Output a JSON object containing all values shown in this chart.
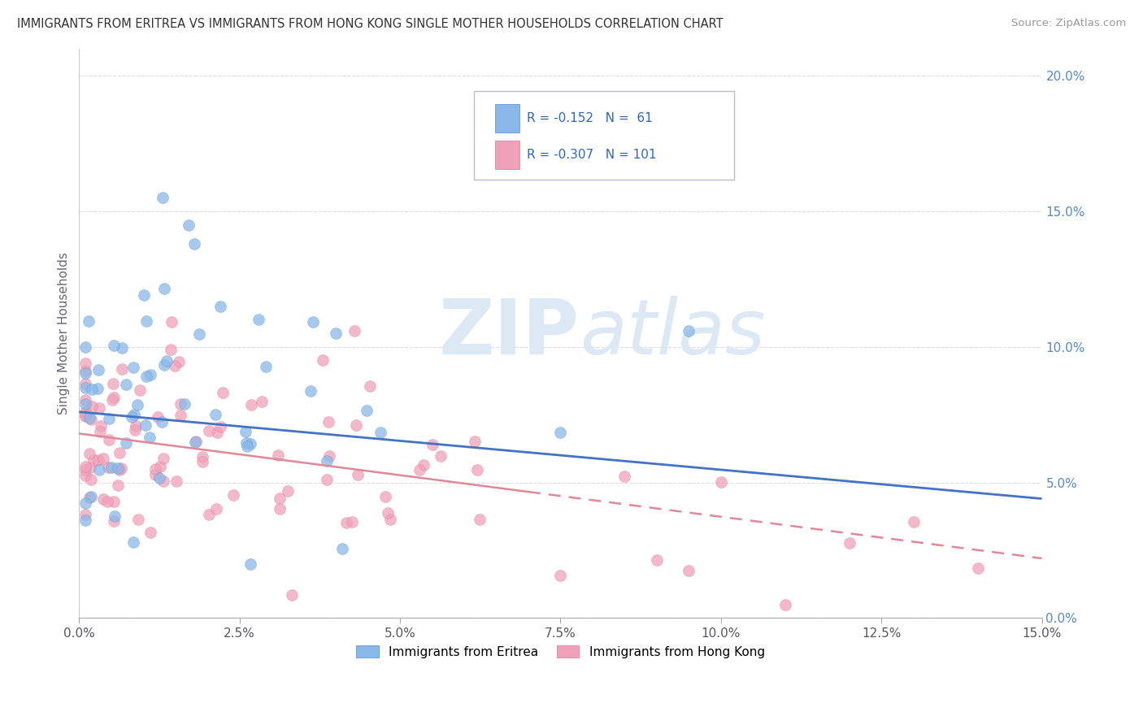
{
  "title": "IMMIGRANTS FROM ERITREA VS IMMIGRANTS FROM HONG KONG SINGLE MOTHER HOUSEHOLDS CORRELATION CHART",
  "source": "Source: ZipAtlas.com",
  "ylabel": "Single Mother Households",
  "legend_eritrea": {
    "R": "-0.152",
    "N": "61"
  },
  "legend_hongkong": {
    "R": "-0.307",
    "N": "101"
  },
  "watermark_zip": "ZIP",
  "watermark_atlas": "atlas",
  "eritrea_color": "#88b8e8",
  "eritrea_edge": "#5090d0",
  "hongkong_color": "#f0a0b8",
  "hongkong_edge": "#e07090",
  "eritrea_line_color": "#4472c4",
  "hongkong_line_color": "#e08898",
  "background_color": "#ffffff",
  "grid_color": "#dddddd",
  "tick_color": "#5588cc",
  "xlim": [
    0.0,
    0.15
  ],
  "ylim": [
    0.0,
    0.21
  ],
  "yticks": [
    0.0,
    0.05,
    0.1,
    0.15,
    0.2
  ],
  "xticks": [
    0.0,
    0.025,
    0.05,
    0.075,
    0.1,
    0.125,
    0.15
  ],
  "eritrea_line": {
    "x0": 0.0,
    "y0": 0.076,
    "x1": 0.15,
    "y1": 0.044
  },
  "hongkong_line": {
    "x0": 0.0,
    "y0": 0.068,
    "x1": 0.15,
    "y1": 0.022
  },
  "hongkong_line_dashed_start": 0.07,
  "figsize": [
    14.06,
    8.92
  ]
}
